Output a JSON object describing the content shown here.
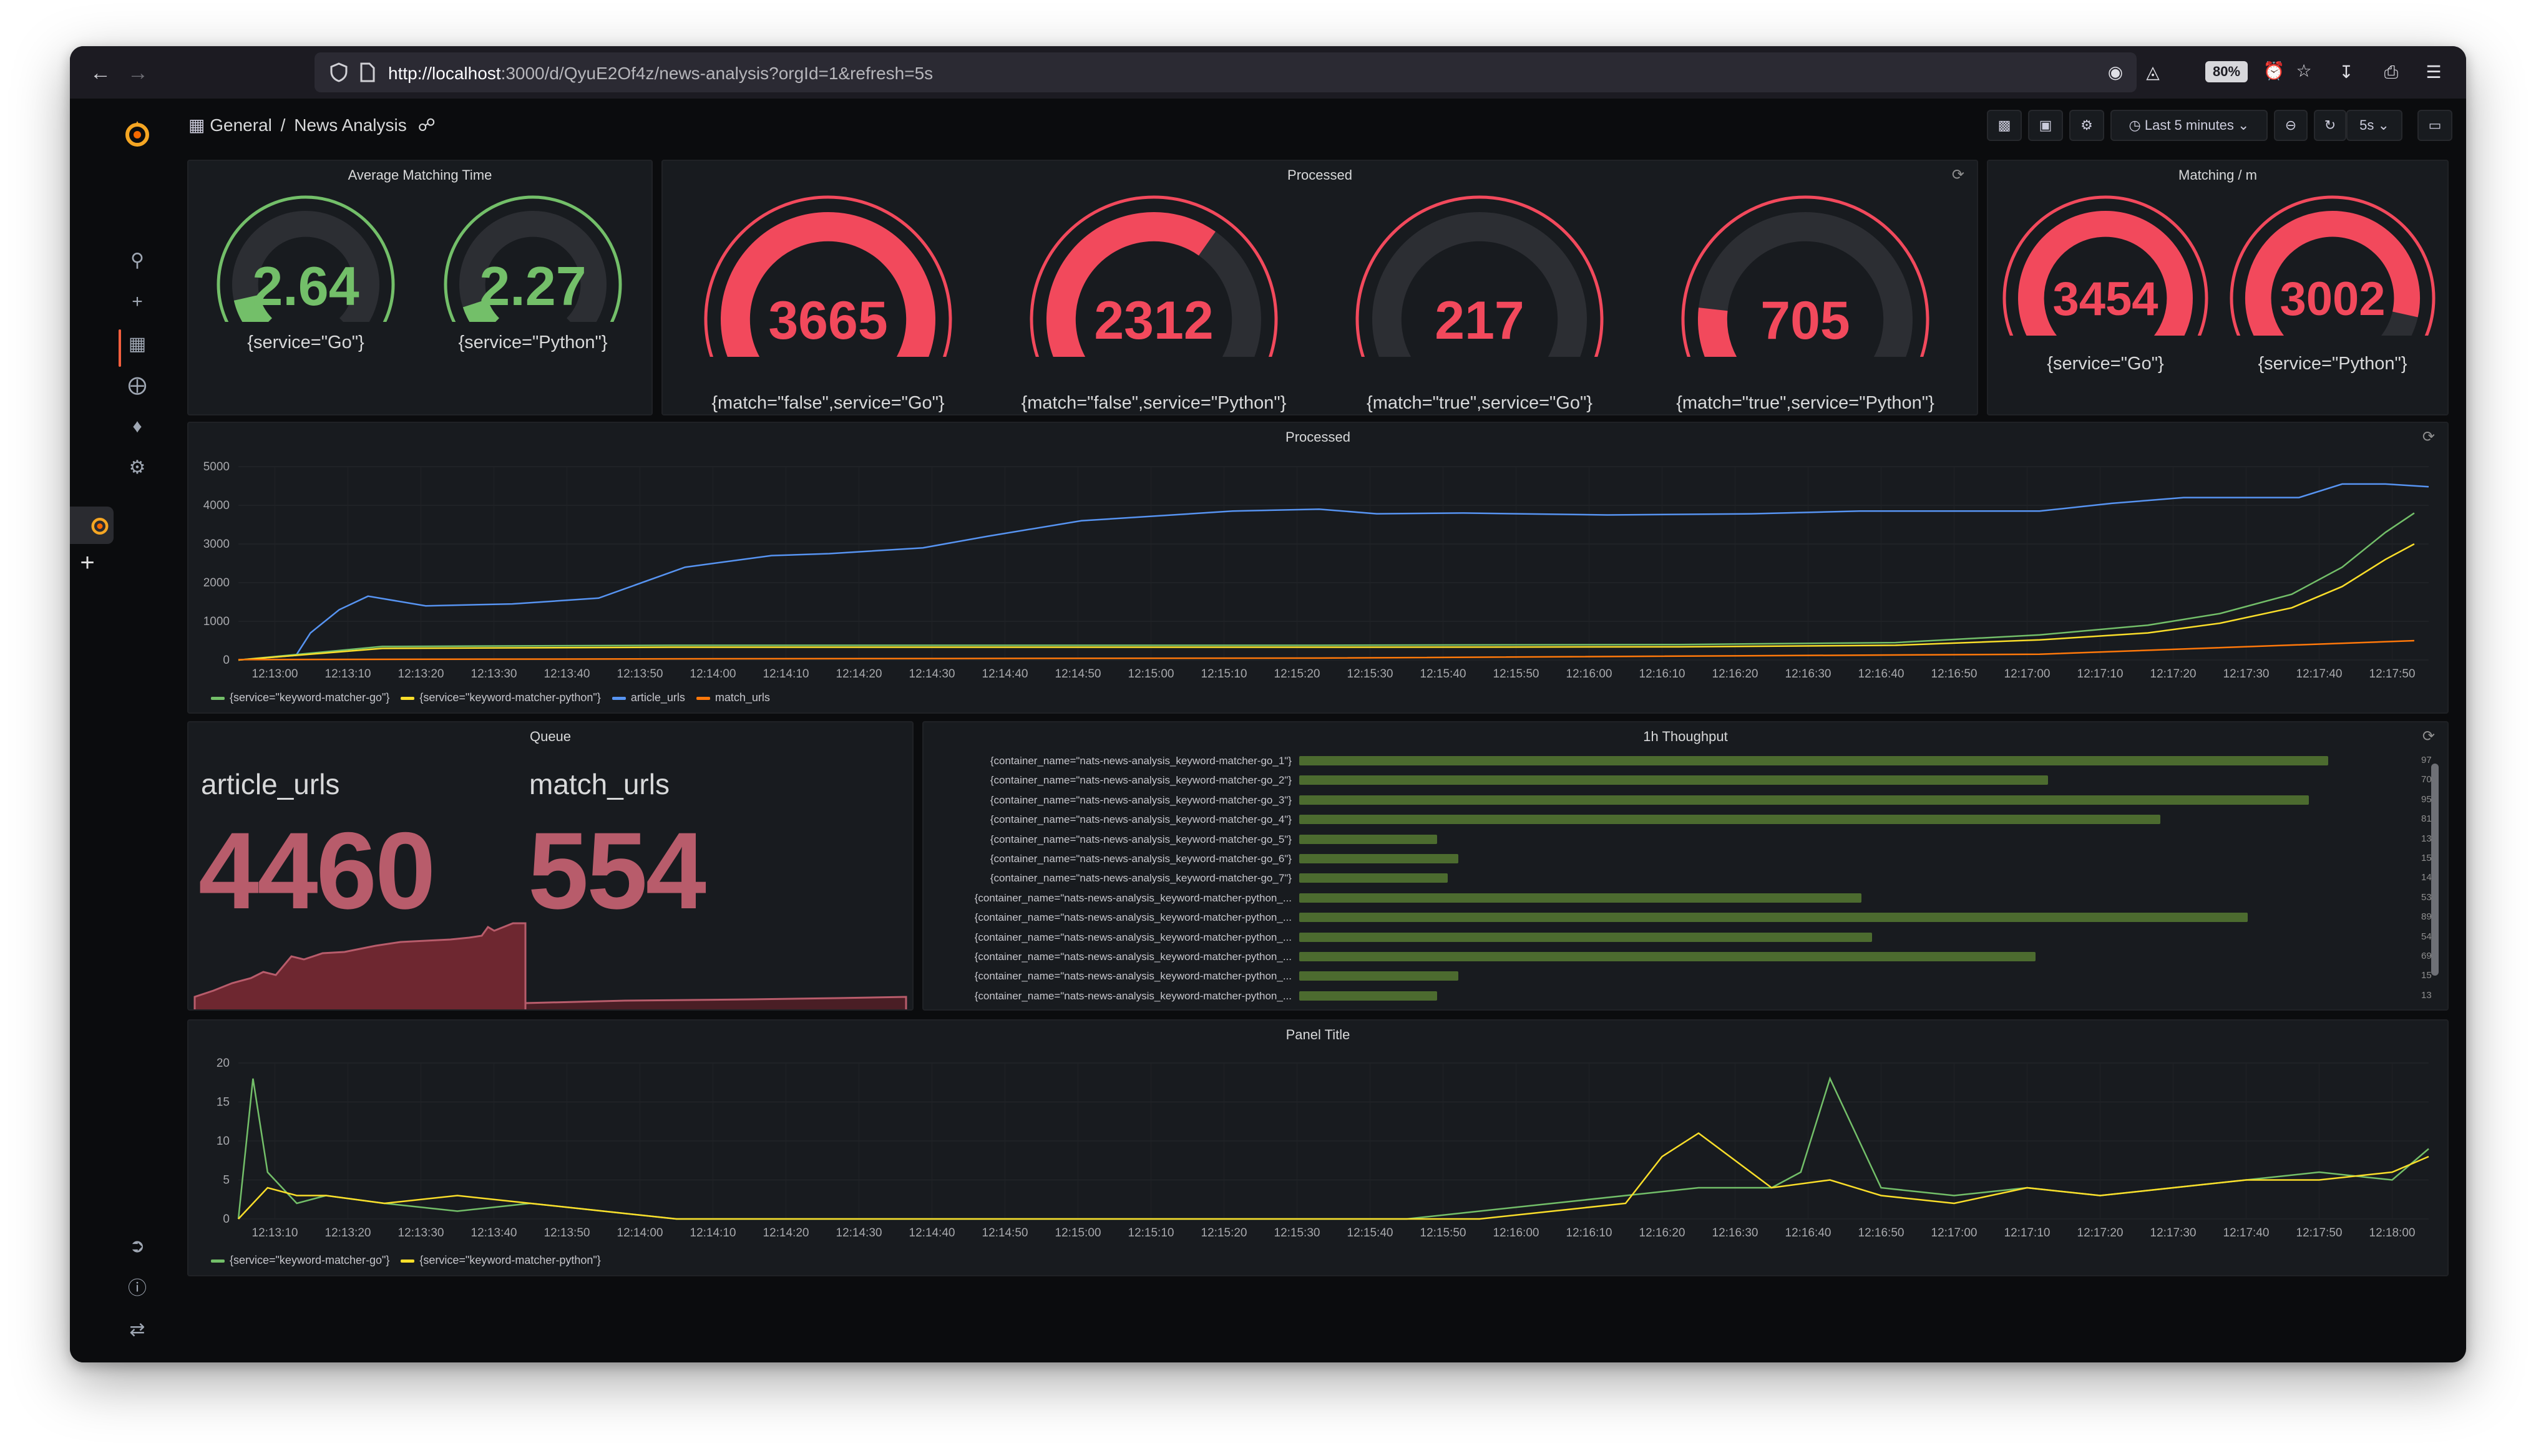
{
  "browser": {
    "url_host": "http://localhost",
    "url_rest": ":3000/d/QyuE2Of4z/news-analysis?orgId=1&refresh=5s",
    "zoom": "80%"
  },
  "topbar": {
    "breadcrumb_root": "General",
    "breadcrumb_sep": "/",
    "breadcrumb_page": "News Analysis",
    "time_range": "Last 5 minutes",
    "refresh_interval": "5s"
  },
  "panels": {
    "avg_matching": {
      "title": "Average Matching Time",
      "gauges": [
        {
          "value": "2.64",
          "label": "{service=\"Go\"}",
          "fraction": 0.12,
          "color": "#73bf69"
        },
        {
          "value": "2.27",
          "label": "{service=\"Python\"}",
          "fraction": 0.1,
          "color": "#73bf69"
        }
      ]
    },
    "processed_gauges": {
      "title": "Processed",
      "gauges": [
        {
          "value": "3665",
          "label": "{match=\"false\",service=\"Go\"}",
          "fraction": 1.0,
          "color": "#f2495c"
        },
        {
          "value": "2312",
          "label": "{match=\"false\",service=\"Python\"}",
          "fraction": 0.63,
          "color": "#f2495c"
        },
        {
          "value": "217",
          "label": "{match=\"true\",service=\"Go\"}",
          "fraction": 0.06,
          "color": "#f2495c"
        },
        {
          "value": "705",
          "label": "{match=\"true\",service=\"Python\"}",
          "fraction": 0.19,
          "color": "#f2495c"
        }
      ]
    },
    "matching_per_min": {
      "title": "Matching / m",
      "gauges": [
        {
          "value": "3454",
          "label": "{service=\"Go\"}",
          "fraction": 0.98,
          "color": "#f2495c"
        },
        {
          "value": "3002",
          "label": "{service=\"Python\"}",
          "fraction": 0.88,
          "color": "#f2495c"
        }
      ]
    },
    "processed_ts": {
      "title": "Processed",
      "legend": [
        {
          "name": "{service=\"keyword-matcher-go\"}",
          "color": "#73bf69"
        },
        {
          "name": "{service=\"keyword-matcher-python\"}",
          "color": "#fade2a"
        },
        {
          "name": "article_urls",
          "color": "#5794f2"
        },
        {
          "name": "match_urls",
          "color": "#ff780a"
        }
      ]
    },
    "queue": {
      "title": "Queue",
      "items": [
        {
          "name": "article_urls",
          "value": "4460"
        },
        {
          "name": "match_urls",
          "value": "554"
        }
      ]
    },
    "throughput": {
      "title": "1h Thoughput",
      "rows": [
        {
          "label": "{container_name=\"nats-news-analysis_keyword-matcher-go_1\"}",
          "value": "97",
          "fraction": 0.97
        },
        {
          "label": "{container_name=\"nats-news-analysis_keyword-matcher-go_2\"}",
          "value": "70",
          "fraction": 0.706
        },
        {
          "label": "{container_name=\"nats-news-analysis_keyword-matcher-go_3\"}",
          "value": "95",
          "fraction": 0.952
        },
        {
          "label": "{container_name=\"nats-news-analysis_keyword-matcher-go_4\"}",
          "value": "81",
          "fraction": 0.812
        },
        {
          "label": "{container_name=\"nats-news-analysis_keyword-matcher-go_5\"}",
          "value": "13",
          "fraction": 0.13
        },
        {
          "label": "{container_name=\"nats-news-analysis_keyword-matcher-go_6\"}",
          "value": "15",
          "fraction": 0.15
        },
        {
          "label": "{container_name=\"nats-news-analysis_keyword-matcher-go_7\"}",
          "value": "14",
          "fraction": 0.14
        },
        {
          "label": "{container_name=\"nats-news-analysis_keyword-matcher-python_...",
          "value": "53",
          "fraction": 0.53
        },
        {
          "label": "{container_name=\"nats-news-analysis_keyword-matcher-python_...",
          "value": "89",
          "fraction": 0.894
        },
        {
          "label": "{container_name=\"nats-news-analysis_keyword-matcher-python_...",
          "value": "54",
          "fraction": 0.54
        },
        {
          "label": "{container_name=\"nats-news-analysis_keyword-matcher-python_...",
          "value": "69",
          "fraction": 0.694
        },
        {
          "label": "{container_name=\"nats-news-analysis_keyword-matcher-python_...",
          "value": "15",
          "fraction": 0.15
        },
        {
          "label": "{container_name=\"nats-news-analysis_keyword-matcher-python_...",
          "value": "13",
          "fraction": 0.13
        }
      ]
    },
    "panel_title": {
      "title": "Panel Title",
      "legend": [
        {
          "name": "{service=\"keyword-matcher-go\"}",
          "color": "#73bf69"
        },
        {
          "name": "{service=\"keyword-matcher-python\"}",
          "color": "#fade2a"
        }
      ]
    }
  },
  "chart_data": [
    {
      "type": "line",
      "title": "Processed",
      "ylim": [
        0,
        5000
      ],
      "yticks": [
        "0",
        "1000",
        "2000",
        "3000",
        "4000",
        "5000"
      ],
      "xticks": [
        "12:13:00",
        "12:13:10",
        "12:13:20",
        "12:13:30",
        "12:13:40",
        "12:13:50",
        "12:14:00",
        "12:14:10",
        "12:14:20",
        "12:14:30",
        "12:14:40",
        "12:14:50",
        "12:15:00",
        "12:15:10",
        "12:15:20",
        "12:15:30",
        "12:15:40",
        "12:15:50",
        "12:16:00",
        "12:16:10",
        "12:16:20",
        "12:16:30",
        "12:16:40",
        "12:16:50",
        "12:17:00",
        "12:17:10",
        "12:17:20",
        "12:17:30",
        "12:17:40",
        "12:17:50"
      ],
      "series": [
        {
          "name": "article_urls",
          "color": "#5794f2",
          "x": [
            0,
            8,
            10,
            14,
            18,
            26,
            38,
            50,
            62,
            74,
            82,
            95,
            104,
            117,
            138,
            150,
            158,
            170,
            190,
            210,
            225,
            250,
            260,
            270,
            286,
            292,
            298,
            304
          ],
          "y": [
            0,
            120,
            700,
            1300,
            1650,
            1400,
            1450,
            1600,
            2400,
            2700,
            2750,
            2900,
            3200,
            3600,
            3850,
            3900,
            3780,
            3800,
            3750,
            3780,
            3850,
            3850,
            4050,
            4200,
            4200,
            4550,
            4550,
            4480
          ]
        },
        {
          "name": "{service=\"keyword-matcher-go\"}",
          "color": "#73bf69",
          "x": [
            0,
            20,
            60,
            100,
            150,
            200,
            230,
            250,
            265,
            275,
            285,
            292,
            298,
            302
          ],
          "y": [
            0,
            350,
            380,
            380,
            380,
            400,
            450,
            650,
            900,
            1200,
            1700,
            2400,
            3300,
            3800
          ]
        },
        {
          "name": "{service=\"keyword-matcher-python\"}",
          "color": "#fade2a",
          "x": [
            0,
            20,
            60,
            100,
            150,
            200,
            230,
            250,
            265,
            275,
            285,
            292,
            298,
            302
          ],
          "y": [
            0,
            300,
            330,
            330,
            330,
            340,
            380,
            520,
            700,
            950,
            1350,
            1900,
            2600,
            3000
          ]
        },
        {
          "name": "match_urls",
          "color": "#ff780a",
          "x": [
            0,
            60,
            150,
            250,
            302
          ],
          "y": [
            10,
            30,
            50,
            150,
            500
          ]
        }
      ]
    },
    {
      "type": "line",
      "title": "Panel Title",
      "ylim": [
        0,
        20
      ],
      "yticks": [
        "0",
        "5",
        "10",
        "15",
        "20"
      ],
      "xticks": [
        "12:13:10",
        "12:13:20",
        "12:13:30",
        "12:13:40",
        "12:13:50",
        "12:14:00",
        "12:14:10",
        "12:14:20",
        "12:14:30",
        "12:14:40",
        "12:14:50",
        "12:15:00",
        "12:15:10",
        "12:15:20",
        "12:15:30",
        "12:15:40",
        "12:15:50",
        "12:16:00",
        "12:16:10",
        "12:16:20",
        "12:16:30",
        "12:16:40",
        "12:16:50",
        "12:17:00",
        "12:17:10",
        "12:17:20",
        "12:17:30",
        "12:17:40",
        "12:17:50",
        "12:18:00"
      ],
      "series": [
        {
          "name": "{service=\"keyword-matcher-go\"}",
          "color": "#73bf69",
          "x": [
            0,
            2,
            4,
            8,
            12,
            20,
            30,
            40,
            50,
            60,
            70,
            80,
            90,
            100,
            110,
            120,
            130,
            140,
            150,
            160,
            170,
            180,
            190,
            200,
            210,
            214,
            218,
            225,
            235,
            245,
            255,
            265,
            275,
            285,
            295,
            300
          ],
          "y": [
            0,
            18,
            6,
            2,
            3,
            2,
            1,
            2,
            1,
            0,
            0,
            0,
            0,
            0,
            0,
            0,
            0,
            0,
            0,
            0,
            1,
            2,
            3,
            4,
            4,
            6,
            18,
            4,
            3,
            4,
            3,
            4,
            5,
            6,
            5,
            9
          ]
        },
        {
          "name": "{service=\"keyword-matcher-python\"}",
          "color": "#fade2a",
          "x": [
            0,
            4,
            8,
            12,
            20,
            30,
            40,
            50,
            60,
            70,
            80,
            90,
            100,
            110,
            120,
            130,
            140,
            150,
            160,
            170,
            180,
            190,
            195,
            200,
            210,
            218,
            225,
            235,
            245,
            255,
            265,
            275,
            285,
            295,
            300
          ],
          "y": [
            0,
            4,
            3,
            3,
            2,
            3,
            2,
            1,
            0,
            0,
            0,
            0,
            0,
            0,
            0,
            0,
            0,
            0,
            0,
            0,
            1,
            2,
            8,
            11,
            4,
            5,
            3,
            2,
            4,
            3,
            4,
            5,
            5,
            6,
            8
          ]
        }
      ]
    }
  ]
}
